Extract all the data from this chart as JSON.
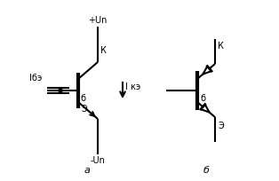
{
  "bg_color": "#ffffff",
  "line_color": "#000000",
  "lw": 1.5,
  "fig_w": 3.14,
  "fig_h": 2.04,
  "dpi": 100,
  "labels": {
    "plus_un": "+Un",
    "minus_un": "-Un",
    "K_left": "К",
    "B_left": "б",
    "E_left": "Э",
    "Ibe": "Iбэ",
    "Ike": "I кэ",
    "label_a": "а",
    "K_right": "К",
    "B_right": "б",
    "E_right": "Э",
    "label_b": "б"
  }
}
